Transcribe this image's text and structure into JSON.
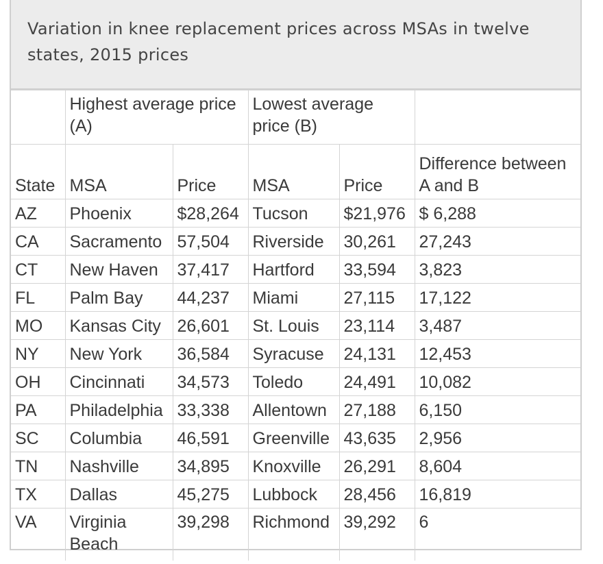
{
  "caption": "Variation in knee replacement prices across MSAs in twelve states, 2015 prices",
  "header": {
    "group_a": "Highest average price (A)",
    "group_b": "Lowest average price (B)",
    "state": "State",
    "msa_a": "MSA",
    "price_a": "Price",
    "msa_b": "MSA",
    "price_b": "Price",
    "difference": "Difference between A and B"
  },
  "rows": [
    {
      "state": "AZ",
      "msa_a": "Phoenix",
      "price_a": "$28,264",
      "msa_b": "Tucson",
      "price_b": "$21,976",
      "diff": "$ 6,288"
    },
    {
      "state": "CA",
      "msa_a": "Sacramento",
      "price_a": "57,504",
      "msa_b": "Riverside",
      "price_b": "30,261",
      "diff": "27,243"
    },
    {
      "state": "CT",
      "msa_a": "New Haven",
      "price_a": "37,417",
      "msa_b": "Hartford",
      "price_b": "33,594",
      "diff": "3,823"
    },
    {
      "state": "FL",
      "msa_a": "Palm Bay",
      "price_a": "44,237",
      "msa_b": "Miami",
      "price_b": "27,115",
      "diff": "17,122"
    },
    {
      "state": "MO",
      "msa_a": "Kansas City",
      "price_a": "26,601",
      "msa_b": "St. Louis",
      "price_b": "23,114",
      "diff": "3,487"
    },
    {
      "state": "NY",
      "msa_a": "New York",
      "price_a": "36,584",
      "msa_b": "Syracuse",
      "price_b": "24,131",
      "diff": "12,453"
    },
    {
      "state": "OH",
      "msa_a": "Cincinnati",
      "price_a": "34,573",
      "msa_b": "Toledo",
      "price_b": "24,491",
      "diff": "10,082"
    },
    {
      "state": "PA",
      "msa_a": "Philadelphia",
      "price_a": "33,338",
      "msa_b": "Allentown",
      "price_b": "27,188",
      "diff": "6,150"
    },
    {
      "state": "SC",
      "msa_a": "Columbia",
      "price_a": "46,591",
      "msa_b": "Greenville",
      "price_b": "43,635",
      "diff": "2,956"
    },
    {
      "state": "TN",
      "msa_a": "Nashville",
      "price_a": "34,895",
      "msa_b": "Knoxville",
      "price_b": "26,291",
      "diff": "8,604"
    },
    {
      "state": "TX",
      "msa_a": "Dallas",
      "price_a": "45,275",
      "msa_b": "Lubbock",
      "price_b": "28,456",
      "diff": "16,819"
    },
    {
      "state": "VA",
      "msa_a": "Virginia Beach",
      "price_a": "39,298",
      "msa_b": "Richmond",
      "price_b": "39,292",
      "diff": "6"
    }
  ]
}
